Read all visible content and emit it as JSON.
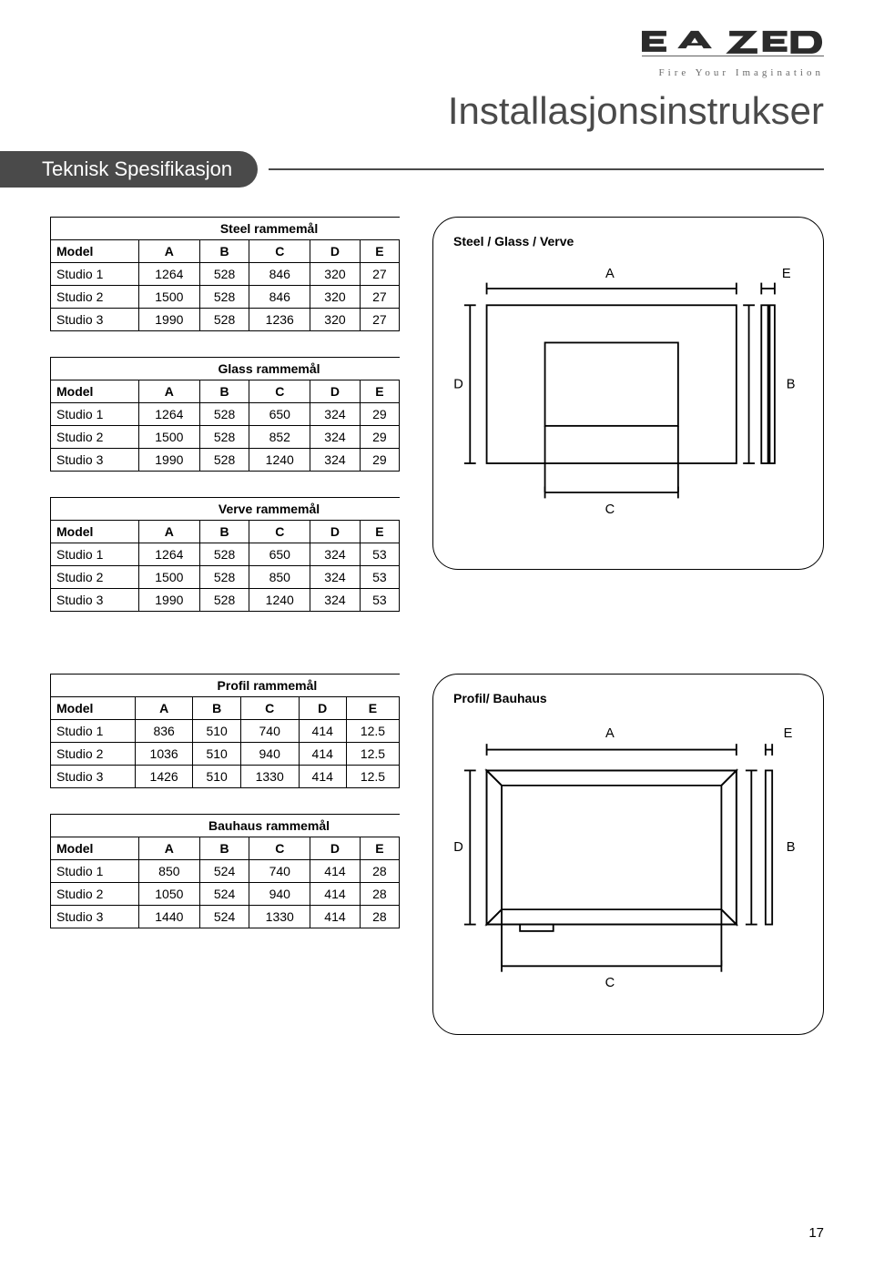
{
  "brand": {
    "tagline": "Fire Your Imagination"
  },
  "page_title": "Installasjonsinstrukser",
  "banner": "Teknisk Spesifikasjon",
  "tables": {
    "steel": {
      "caption": "Steel rammemål",
      "columns": [
        "Model",
        "A",
        "B",
        "C",
        "D",
        "E"
      ],
      "rows": [
        [
          "Studio 1",
          "1264",
          "528",
          "846",
          "320",
          "27"
        ],
        [
          "Studio 2",
          "1500",
          "528",
          "846",
          "320",
          "27"
        ],
        [
          "Studio 3",
          "1990",
          "528",
          "1236",
          "320",
          "27"
        ]
      ]
    },
    "glass": {
      "caption": "Glass rammemål",
      "columns": [
        "Model",
        "A",
        "B",
        "C",
        "D",
        "E"
      ],
      "rows": [
        [
          "Studio 1",
          "1264",
          "528",
          "650",
          "324",
          "29"
        ],
        [
          "Studio 2",
          "1500",
          "528",
          "852",
          "324",
          "29"
        ],
        [
          "Studio 3",
          "1990",
          "528",
          "1240",
          "324",
          "29"
        ]
      ]
    },
    "verve": {
      "caption": "Verve rammemål",
      "columns": [
        "Model",
        "A",
        "B",
        "C",
        "D",
        "E"
      ],
      "rows": [
        [
          "Studio 1",
          "1264",
          "528",
          "650",
          "324",
          "53"
        ],
        [
          "Studio 2",
          "1500",
          "528",
          "850",
          "324",
          "53"
        ],
        [
          "Studio 3",
          "1990",
          "528",
          "1240",
          "324",
          "53"
        ]
      ]
    },
    "profil": {
      "caption": "Profil rammemål",
      "columns": [
        "Model",
        "A",
        "B",
        "C",
        "D",
        "E"
      ],
      "rows": [
        [
          "Studio 1",
          "836",
          "510",
          "740",
          "414",
          "12.5"
        ],
        [
          "Studio 2",
          "1036",
          "510",
          "940",
          "414",
          "12.5"
        ],
        [
          "Studio 3",
          "1426",
          "510",
          "1330",
          "414",
          "12.5"
        ]
      ]
    },
    "bauhaus": {
      "caption": "Bauhaus rammemål",
      "columns": [
        "Model",
        "A",
        "B",
        "C",
        "D",
        "E"
      ],
      "rows": [
        [
          "Studio 1",
          "850",
          "524",
          "740",
          "414",
          "28"
        ],
        [
          "Studio 2",
          "1050",
          "524",
          "940",
          "414",
          "28"
        ],
        [
          "Studio 3",
          "1440",
          "524",
          "1330",
          "414",
          "28"
        ]
      ]
    }
  },
  "diagrams": {
    "d1": {
      "title": "Steel / Glass / Verve",
      "labels": {
        "A": "A",
        "B": "B",
        "C": "C",
        "D": "D",
        "E": "E"
      },
      "style": {
        "stroke": "#000000",
        "fill": "#ffffff",
        "stroke_width": 2,
        "label_fontsize": 16,
        "outer_w": 300,
        "outer_h": 190,
        "inner_w": 160,
        "inner_h": 100
      }
    },
    "d2": {
      "title": "Profil/ Bauhaus",
      "labels": {
        "A": "A",
        "B": "B",
        "C": "C",
        "D": "D",
        "E": "E"
      },
      "style": {
        "stroke": "#000000",
        "fill": "#ffffff",
        "stroke_width": 2,
        "label_fontsize": 16,
        "outer_w": 300,
        "outer_h": 185,
        "bevel": 18
      }
    }
  },
  "page_number": "17"
}
